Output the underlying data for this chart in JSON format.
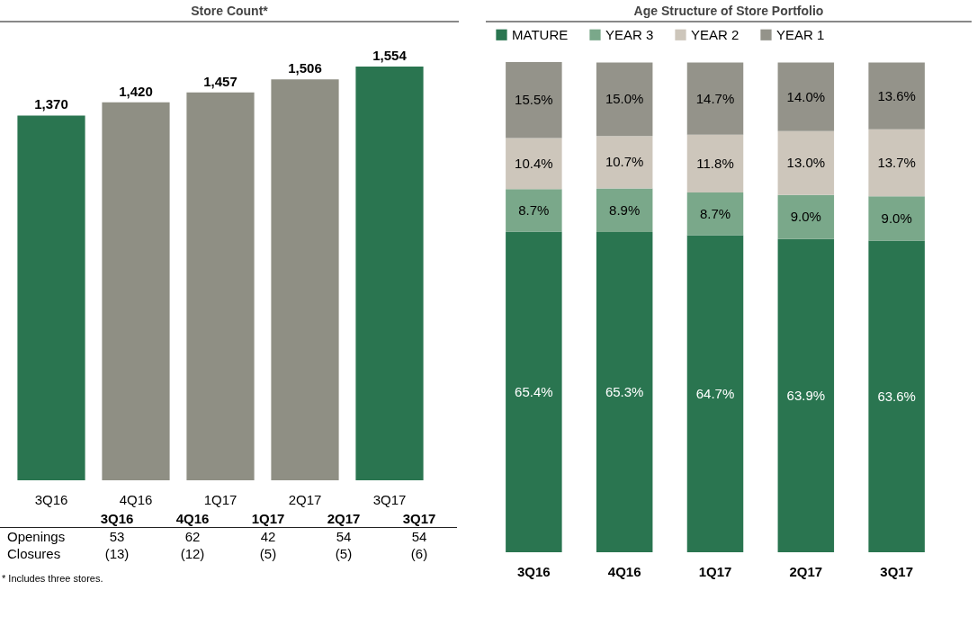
{
  "chart_data": [
    {
      "type": "bar",
      "title": "Store Count*",
      "categories": [
        "3Q16",
        "4Q16",
        "1Q17",
        "2Q17",
        "3Q17"
      ],
      "values": [
        1370,
        1420,
        1457,
        1506,
        1554
      ],
      "value_labels": [
        "1,370",
        "1,420",
        "1,457",
        "1,506",
        "1,554"
      ],
      "colors": [
        "#2a7550",
        "#8f8f84",
        "#8f8f84",
        "#8f8f84",
        "#2a7550"
      ],
      "tick_labels": "x",
      "annotations": [
        "Openings",
        "53",
        "62",
        "42",
        "54",
        "54",
        "Closures",
        "(13)",
        "(12)",
        "(5)",
        "(5)",
        "(6)",
        "* Includes three stores."
      ]
    },
    {
      "type": "bar",
      "title": "Age Structure of Store Portfolio",
      "stacked": true,
      "categories": [
        "3Q16",
        "4Q16",
        "1Q17",
        "2Q17",
        "3Q17"
      ],
      "series": [
        {
          "name": "MATURE",
          "color": "#2a7550",
          "values": [
            65.4,
            65.3,
            64.7,
            63.9,
            63.6
          ],
          "value_labels": [
            "65.4%",
            "65.3%",
            "64.7%",
            "63.9%",
            "63.6%"
          ]
        },
        {
          "name": "YEAR 3",
          "color": "#7aa88a",
          "values": [
            8.7,
            8.9,
            8.7,
            9.0,
            9.0
          ],
          "value_labels": [
            "8.7%",
            "8.9%",
            "8.7%",
            "9.0%",
            "9.0%"
          ]
        },
        {
          "name": "YEAR 2",
          "color": "#cdc6bb",
          "values": [
            10.4,
            10.7,
            11.8,
            13.0,
            13.7
          ],
          "value_labels": [
            "10.4%",
            "10.7%",
            "11.8%",
            "13.0%",
            "13.7%"
          ]
        },
        {
          "name": "YEAR 1",
          "color": "#94938a",
          "values": [
            15.5,
            15.0,
            14.7,
            14.0,
            13.6
          ],
          "value_labels": [
            "15.5%",
            "15.0%",
            "14.7%",
            "14.0%",
            "13.6%"
          ]
        }
      ],
      "ylim": [
        0,
        100
      ],
      "tick_labels": "x",
      "legend": "top"
    }
  ]
}
